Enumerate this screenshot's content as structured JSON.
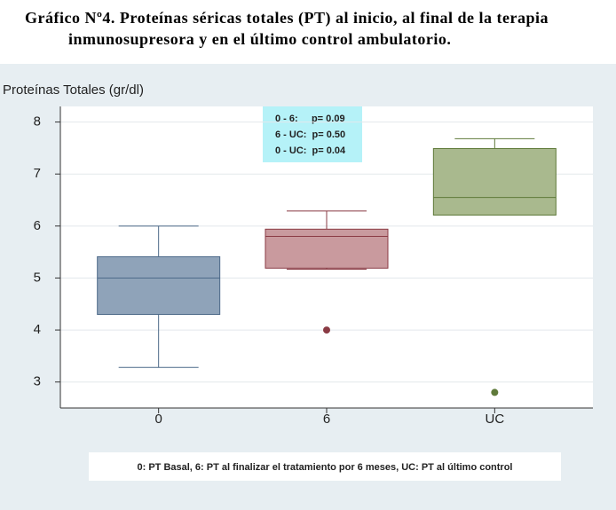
{
  "chart_data": {
    "type": "box",
    "title": [
      "Gráfico Nº4. Proteínas séricas totales (PT) al inicio, al final de la terapia",
      "inmunosupresora  y en el último control ambulatorio."
    ],
    "y_label": "Proteínas Totales (gr/dl)",
    "categories": [
      "0",
      "6",
      "UC"
    ],
    "boxes": [
      {
        "low": 3.28,
        "q1": 4.3,
        "median": 5.0,
        "q3": 5.41,
        "high": 6.0,
        "outliers": [],
        "color": "#8fa3b9",
        "edge": "#4d6a89"
      },
      {
        "low": 5.17,
        "q1": 5.19,
        "median": 5.8,
        "q3": 5.94,
        "high": 6.29,
        "outliers": [
          4.0
        ],
        "color": "#c99a9e",
        "edge": "#8a3b44"
      },
      {
        "low": 6.21,
        "q1": 6.21,
        "median": 6.55,
        "q3": 7.49,
        "high": 7.68,
        "outliers": [
          2.8
        ],
        "color": "#a9b98e",
        "edge": "#5f7a3a"
      }
    ],
    "ylim": [
      2.5,
      8.3
    ],
    "yticks": [
      3,
      4,
      5,
      6,
      7,
      8
    ],
    "grid": true,
    "annotation": [
      "0 - 6:     p= 0.09",
      "6 - UC:  p= 0.50",
      "0 - UC:  p= 0.04"
    ],
    "footnote": "0: PT  Basal, 6: PT  al finalizar el tratamiento por 6 meses,  UC: PT al último control"
  }
}
